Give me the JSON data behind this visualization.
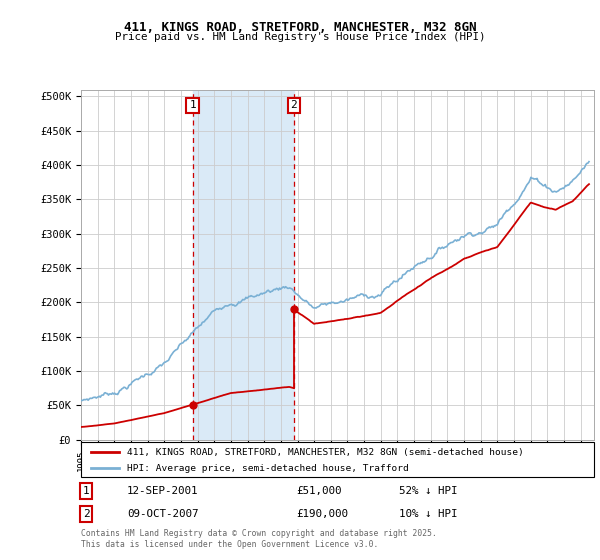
{
  "title1": "411, KINGS ROAD, STRETFORD, MANCHESTER, M32 8GN",
  "title2": "Price paid vs. HM Land Registry's House Price Index (HPI)",
  "yticks": [
    0,
    50000,
    100000,
    150000,
    200000,
    250000,
    300000,
    350000,
    400000,
    450000,
    500000
  ],
  "ytick_labels": [
    "£0",
    "£50K",
    "£100K",
    "£150K",
    "£200K",
    "£250K",
    "£300K",
    "£350K",
    "£400K",
    "£450K",
    "£500K"
  ],
  "xlim_start": 1995.0,
  "xlim_end": 2025.8,
  "ylim_min": 0,
  "ylim_max": 510000,
  "legend_line1": "411, KINGS ROAD, STRETFORD, MANCHESTER, M32 8GN (semi-detached house)",
  "legend_line2": "HPI: Average price, semi-detached house, Trafford",
  "sale1_date": "12-SEP-2001",
  "sale1_price": "£51,000",
  "sale1_hpi": "52% ↓ HPI",
  "sale2_date": "09-OCT-2007",
  "sale2_price": "£190,000",
  "sale2_hpi": "10% ↓ HPI",
  "footer": "Contains HM Land Registry data © Crown copyright and database right 2025.\nThis data is licensed under the Open Government Licence v3.0.",
  "sale1_x": 2001.7,
  "sale1_y": 51000,
  "sale2_x": 2007.78,
  "sale2_y": 190000,
  "color_property": "#cc0000",
  "color_hpi": "#7ab0d4",
  "color_shade": "#daeaf7",
  "background": "#ffffff"
}
